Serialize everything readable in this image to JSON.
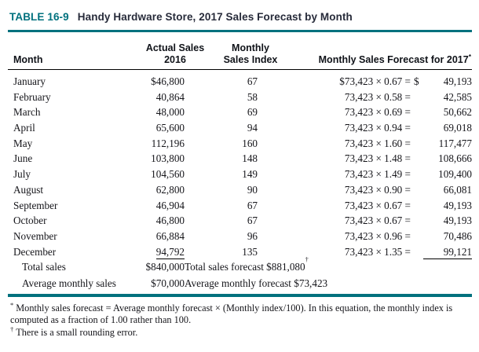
{
  "colors": {
    "accent_teal": "#00717e",
    "title_text": "#272b3a"
  },
  "title": {
    "label": "TABLE 16-9",
    "text": "Handy Hardware Store, 2017 Sales Forecast by Month"
  },
  "header": {
    "month": "Month",
    "actual_line1": "Actual Sales",
    "actual_line2": "2016",
    "index_line1": "Monthly",
    "index_line2": "Sales Index",
    "forecast": "Monthly Sales Forecast for 2017",
    "forecast_mark": "*"
  },
  "rows": [
    {
      "month": "January",
      "actual": "$46,800",
      "index": "67",
      "expr": "$73,423 × 0.67 =",
      "cur": "$",
      "value": "49,193"
    },
    {
      "month": "February",
      "actual": "40,864",
      "index": "58",
      "expr": "73,423 × 0.58 =",
      "cur": "",
      "value": "42,585"
    },
    {
      "month": "March",
      "actual": "48,000",
      "index": "69",
      "expr": "73,423 × 0.69 =",
      "cur": "",
      "value": "50,662"
    },
    {
      "month": "April",
      "actual": "65,600",
      "index": "94",
      "expr": "73,423 × 0.94 =",
      "cur": "",
      "value": "69,018"
    },
    {
      "month": "May",
      "actual": "112,196",
      "index": "160",
      "expr": "73,423 × 1.60 =",
      "cur": "",
      "value": "117,477"
    },
    {
      "month": "June",
      "actual": "103,800",
      "index": "148",
      "expr": "73,423 × 1.48 =",
      "cur": "",
      "value": "108,666"
    },
    {
      "month": "July",
      "actual": "104,560",
      "index": "149",
      "expr": "73,423 × 1.49 =",
      "cur": "",
      "value": "109,400"
    },
    {
      "month": "August",
      "actual": "62,800",
      "index": "90",
      "expr": "73,423 × 0.90 =",
      "cur": "",
      "value": "66,081"
    },
    {
      "month": "September",
      "actual": "46,904",
      "index": "67",
      "expr": "73,423 × 0.67 =",
      "cur": "",
      "value": "49,193"
    },
    {
      "month": "October",
      "actual": "46,800",
      "index": "67",
      "expr": "73,423 × 0.67 =",
      "cur": "",
      "value": "49,193"
    },
    {
      "month": "November",
      "actual": "66,884",
      "index": "96",
      "expr": "73,423 × 0.96 =",
      "cur": "",
      "value": "70,486"
    },
    {
      "month": "December",
      "actual": "94,792",
      "index": "135",
      "expr": "73,423 × 1.35 =",
      "cur": "",
      "value": "99,121"
    }
  ],
  "totals": {
    "total_label": "Total sales",
    "total_actual": "$840,000",
    "total_forecast": "Total sales forecast $881,080",
    "total_forecast_mark": "†",
    "avg_label": "Average monthly sales",
    "avg_actual": "$70,000",
    "avg_forecast": "Average monthly forecast $73,423"
  },
  "footnotes": {
    "note1_mark": "*",
    "note1_text": "Monthly sales forecast = Average monthly forecast × (Monthly index/100). In this equation, the monthly index is computed as a fraction of 1.00 rather than 100.",
    "note2_mark": "†",
    "note2_text": "There is a small rounding error."
  }
}
